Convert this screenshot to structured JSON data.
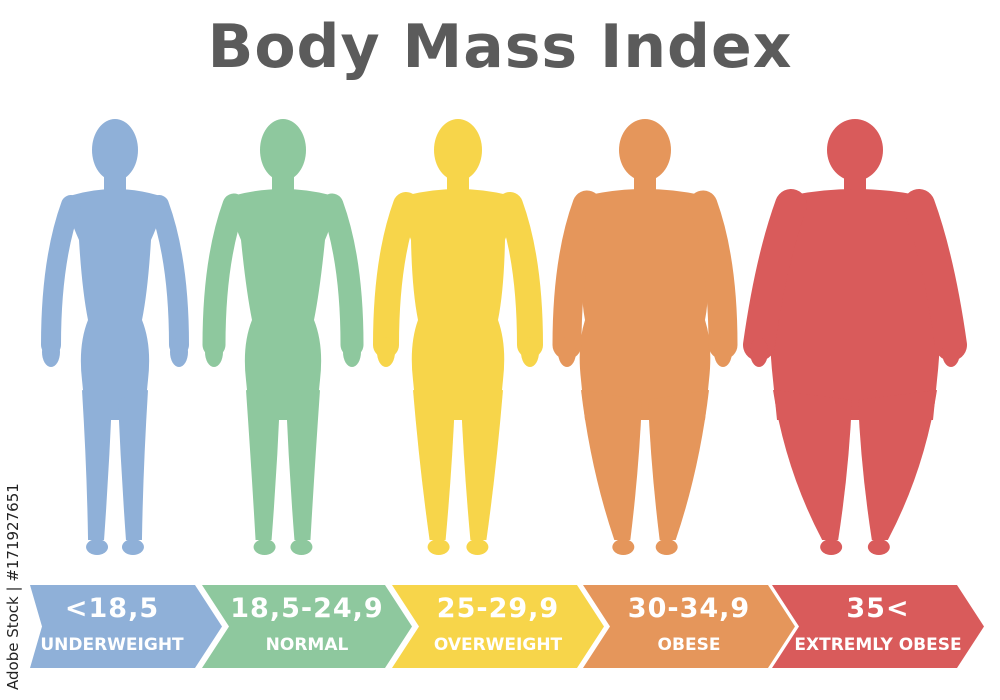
{
  "title": "Body Mass Index",
  "credit": "Adobe Stock | #171927651",
  "categories": [
    {
      "range": "<18,5",
      "label": "UNDERWEIGHT",
      "color": "#8fb0d8"
    },
    {
      "range": "18,5-24,9",
      "label": "NORMAL",
      "color": "#8ec89e"
    },
    {
      "range": "25-29,9",
      "label": "OVERWEIGHT",
      "color": "#f7d54a"
    },
    {
      "range": "30-34,9",
      "label": "OBESE",
      "color": "#e5965b"
    },
    {
      "range": "35<",
      "label": "EXTREMLY OBESE",
      "color": "#d95b5b"
    }
  ]
}
